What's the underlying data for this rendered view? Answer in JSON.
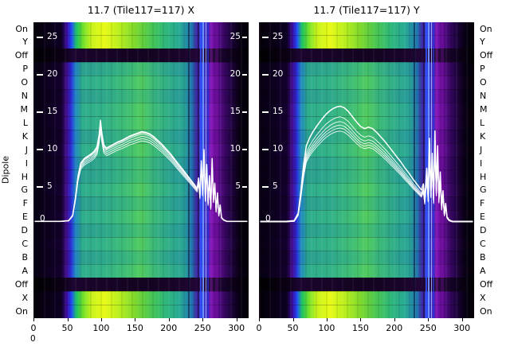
{
  "figure": {
    "ylabel": "Dipole",
    "corner_label": "0",
    "background": "#ffffff",
    "text_color": "#000000"
  },
  "chart_data": [
    {
      "type": "heatmap",
      "title": "11.7 (Tile117=117) X",
      "xlabel": "",
      "x_ticks": [
        0,
        50,
        100,
        150,
        200,
        250,
        300
      ],
      "x_range": [
        0,
        318
      ],
      "rows": [
        "On",
        "Y",
        "Off",
        "P",
        "O",
        "N",
        "M",
        "L",
        "K",
        "J",
        "I",
        "H",
        "G",
        "F",
        "E",
        "D",
        "C",
        "B",
        "A",
        "Off",
        "X",
        "On"
      ],
      "row_kinds": [
        "bright",
        "bright",
        "off",
        "main_a",
        "main_b",
        "main_a",
        "main_b",
        "main_b",
        "main_a",
        "main_b",
        "main_a",
        "main_a",
        "main_b",
        "main_a",
        "main_b",
        "main_a",
        "main_b",
        "main_a",
        "main_b",
        "off",
        "bright",
        "bright"
      ],
      "inner_right_tick_values": [
        25,
        20,
        15,
        10,
        5
      ],
      "overlay_curve": {
        "tick_values": [
          25,
          20,
          15,
          10,
          5
        ],
        "zero_label": "0",
        "value_range": [
          0,
          26
        ],
        "trace_scales": [
          1,
          0.975,
          0.95,
          0.925,
          0.9,
          0.99
        ],
        "points": [
          [
            2,
            0.4
          ],
          [
            40,
            0.4
          ],
          [
            52,
            0.5
          ],
          [
            58,
            1.2
          ],
          [
            62,
            3.5
          ],
          [
            66,
            6.5
          ],
          [
            70,
            8.2
          ],
          [
            75,
            8.8
          ],
          [
            80,
            9.1
          ],
          [
            85,
            9.4
          ],
          [
            90,
            9.8
          ],
          [
            94,
            10.4
          ],
          [
            97,
            12.0
          ],
          [
            99,
            13.9
          ],
          [
            101,
            12.2
          ],
          [
            104,
            10.6
          ],
          [
            108,
            10.2
          ],
          [
            112,
            10.4
          ],
          [
            118,
            10.7
          ],
          [
            124,
            11.0
          ],
          [
            130,
            11.2
          ],
          [
            136,
            11.5
          ],
          [
            142,
            11.8
          ],
          [
            148,
            12.0
          ],
          [
            154,
            12.2
          ],
          [
            160,
            12.4
          ],
          [
            166,
            12.3
          ],
          [
            172,
            12.1
          ],
          [
            178,
            11.7
          ],
          [
            184,
            11.2
          ],
          [
            190,
            10.7
          ],
          [
            196,
            10.1
          ],
          [
            202,
            9.5
          ],
          [
            208,
            8.8
          ],
          [
            214,
            8.1
          ],
          [
            220,
            7.4
          ],
          [
            226,
            6.7
          ],
          [
            232,
            6.0
          ],
          [
            238,
            5.3
          ],
          [
            242,
            4.8
          ],
          [
            244,
            6.2
          ],
          [
            246,
            3.8
          ],
          [
            248,
            8.5
          ],
          [
            250,
            4.2
          ],
          [
            252,
            10.0
          ],
          [
            254,
            3.4
          ],
          [
            256,
            8.0
          ],
          [
            258,
            2.8
          ],
          [
            260,
            6.5
          ],
          [
            262,
            2.2
          ],
          [
            264,
            8.8
          ],
          [
            266,
            3.2
          ],
          [
            268,
            5.5
          ],
          [
            270,
            1.8
          ],
          [
            272,
            4.2
          ],
          [
            274,
            1.2
          ],
          [
            276,
            2.6
          ],
          [
            278,
            0.9
          ],
          [
            281,
            0.6
          ],
          [
            286,
            0.4
          ],
          [
            300,
            0.4
          ],
          [
            316,
            0.4
          ]
        ]
      }
    },
    {
      "type": "heatmap",
      "title": "11.7 (Tile117=117) Y",
      "xlabel": "",
      "x_ticks": [
        0,
        50,
        100,
        150,
        200,
        250,
        300
      ],
      "x_range": [
        0,
        318
      ],
      "rows": [
        "On",
        "Y",
        "Off",
        "P",
        "O",
        "N",
        "M",
        "L",
        "K",
        "J",
        "I",
        "H",
        "G",
        "F",
        "E",
        "D",
        "C",
        "B",
        "A",
        "Off",
        "X",
        "On"
      ],
      "row_kinds": [
        "bright",
        "bright",
        "off",
        "main_a",
        "main_b",
        "main_a",
        "main_b",
        "main_b",
        "main_a",
        "main_b",
        "main_a",
        "main_a",
        "main_b",
        "main_a",
        "main_b",
        "main_a",
        "main_b",
        "main_a",
        "main_b",
        "off",
        "bright",
        "bright"
      ],
      "inner_right_tick_values": [],
      "overlay_curve": {
        "tick_values": [
          25,
          20,
          15,
          10,
          5
        ],
        "zero_label": "0",
        "value_range": [
          0,
          26
        ],
        "trace_scales": [
          1,
          0.87,
          0.84,
          0.815,
          0.79,
          0.91
        ],
        "points": [
          [
            2,
            0.4
          ],
          [
            40,
            0.4
          ],
          [
            52,
            0.5
          ],
          [
            58,
            1.5
          ],
          [
            62,
            4.5
          ],
          [
            66,
            8.0
          ],
          [
            70,
            10.5
          ],
          [
            75,
            11.6
          ],
          [
            80,
            12.4
          ],
          [
            85,
            13.1
          ],
          [
            90,
            13.7
          ],
          [
            95,
            14.3
          ],
          [
            100,
            14.8
          ],
          [
            105,
            15.2
          ],
          [
            110,
            15.5
          ],
          [
            115,
            15.7
          ],
          [
            120,
            15.8
          ],
          [
            126,
            15.6
          ],
          [
            132,
            15.1
          ],
          [
            138,
            14.4
          ],
          [
            144,
            13.7
          ],
          [
            150,
            13.1
          ],
          [
            156,
            12.8
          ],
          [
            162,
            13.0
          ],
          [
            168,
            12.8
          ],
          [
            174,
            12.3
          ],
          [
            180,
            11.7
          ],
          [
            186,
            11.1
          ],
          [
            192,
            10.4
          ],
          [
            198,
            9.7
          ],
          [
            204,
            9.0
          ],
          [
            210,
            8.3
          ],
          [
            216,
            7.5
          ],
          [
            222,
            6.8
          ],
          [
            228,
            6.0
          ],
          [
            234,
            5.3
          ],
          [
            240,
            4.6
          ],
          [
            243,
            5.4
          ],
          [
            245,
            3.4
          ],
          [
            248,
            7.5
          ],
          [
            250,
            3.8
          ],
          [
            252,
            11.5
          ],
          [
            254,
            4.5
          ],
          [
            256,
            9.5
          ],
          [
            258,
            3.5
          ],
          [
            260,
            12.5
          ],
          [
            262,
            4.8
          ],
          [
            264,
            10.5
          ],
          [
            266,
            3.6
          ],
          [
            268,
            7.0
          ],
          [
            270,
            2.4
          ],
          [
            272,
            4.5
          ],
          [
            274,
            1.4
          ],
          [
            276,
            2.8
          ],
          [
            278,
            1.0
          ],
          [
            281,
            0.6
          ],
          [
            286,
            0.4
          ],
          [
            300,
            0.4
          ],
          [
            316,
            0.4
          ]
        ]
      }
    }
  ],
  "palette": {
    "curve_color": "#ffffff",
    "inner_text_color": "#ffffff",
    "gradients": {
      "main_a": [
        [
          "#060010",
          0
        ],
        [
          "#12002a",
          13
        ],
        [
          "#3c0a86",
          15.5
        ],
        [
          "#2b2bd8",
          17.5
        ],
        [
          "#1e7ec2",
          19.5
        ],
        [
          "#2ba08f",
          22.5
        ],
        [
          "#2ea88b",
          33
        ],
        [
          "#36b37e",
          43
        ],
        [
          "#44c06c",
          50
        ],
        [
          "#36b07f",
          56
        ],
        [
          "#2aa190",
          64
        ],
        [
          "#279a9a",
          70
        ],
        [
          "#1e6fae",
          73.5
        ],
        [
          "#40239f",
          76
        ],
        [
          "#3342e6",
          78.5
        ],
        [
          "#5a17b0",
          81.5
        ],
        [
          "#6e0fa4",
          83.5
        ],
        [
          "#4a0878",
          87
        ],
        [
          "#230447",
          91
        ],
        [
          "#07000f",
          96
        ],
        [
          "#050009",
          100
        ]
      ],
      "main_b": [
        [
          "#060010",
          0
        ],
        [
          "#140030",
          13
        ],
        [
          "#440c92",
          15.5
        ],
        [
          "#2f35e0",
          17.5
        ],
        [
          "#1f8ac0",
          19.5
        ],
        [
          "#2fae8d",
          22.5
        ],
        [
          "#33b388",
          33
        ],
        [
          "#3fbe76",
          43
        ],
        [
          "#52cc60",
          50
        ],
        [
          "#3cba78",
          56
        ],
        [
          "#2fae8b",
          64
        ],
        [
          "#2aa596",
          70
        ],
        [
          "#2279ac",
          73.5
        ],
        [
          "#4527a8",
          76
        ],
        [
          "#3a4cec",
          78.5
        ],
        [
          "#6a1cbc",
          81.5
        ],
        [
          "#7a12ae",
          83.5
        ],
        [
          "#520a82",
          87
        ],
        [
          "#28054e",
          91
        ],
        [
          "#080012",
          96
        ],
        [
          "#050009",
          100
        ]
      ],
      "bright": [
        [
          "#050008",
          0
        ],
        [
          "#0d0024",
          13
        ],
        [
          "#3a0a9a",
          15.5
        ],
        [
          "#2448ff",
          17.5
        ],
        [
          "#19c261",
          20
        ],
        [
          "#6fe02c",
          23
        ],
        [
          "#c8f31c",
          27
        ],
        [
          "#e8fa18",
          33
        ],
        [
          "#b8ee1e",
          40
        ],
        [
          "#7fd92c",
          47
        ],
        [
          "#4cc84e",
          54
        ],
        [
          "#2fb97a",
          61
        ],
        [
          "#28a995",
          68
        ],
        [
          "#1f78b0",
          73.5
        ],
        [
          "#4326a6",
          76
        ],
        [
          "#3547ea",
          78.5
        ],
        [
          "#5c18b4",
          81.5
        ],
        [
          "#6e10a6",
          83.5
        ],
        [
          "#49087a",
          87
        ],
        [
          "#220446",
          91
        ],
        [
          "#060010",
          96
        ],
        [
          "#050008",
          100
        ]
      ],
      "off": [
        [
          "#000000",
          0
        ],
        [
          "#0c0016",
          14
        ],
        [
          "#1c0530",
          18
        ],
        [
          "#180428",
          30
        ],
        [
          "#140322",
          50
        ],
        [
          "#180428",
          65
        ],
        [
          "#200634",
          74
        ],
        [
          "#2c0a44",
          79
        ],
        [
          "#26083c",
          84
        ],
        [
          "#100220",
          91
        ],
        [
          "#000000",
          100
        ]
      ]
    },
    "vlines": [
      {
        "u": 229,
        "w": 2,
        "color": "#000a28",
        "alpha": 0.5
      },
      {
        "u": 243,
        "w": 2,
        "color": "#0a0020",
        "alpha": 0.5
      },
      {
        "u": 246,
        "w": 2,
        "color": "#2a50ff",
        "alpha": 0.85
      },
      {
        "u": 250,
        "w": 2,
        "color": "#6d95ff",
        "alpha": 0.95
      },
      {
        "u": 254,
        "w": 1,
        "color": "#9fc0ff",
        "alpha": 0.85
      },
      {
        "u": 257,
        "w": 2,
        "color": "#2238d6",
        "alpha": 0.7
      },
      {
        "u": 262,
        "w": 3,
        "color": "#b31fc4",
        "alpha": 0.3
      },
      {
        "u": 269,
        "w": 4,
        "color": "#8a14a8",
        "alpha": 0.28
      }
    ]
  }
}
